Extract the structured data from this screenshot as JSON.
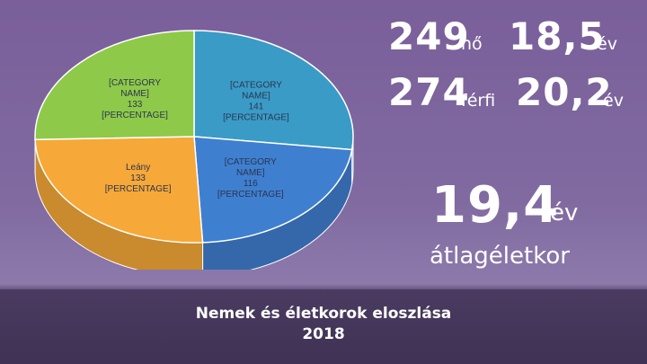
{
  "chart_data": {
    "type": "pie",
    "slices": [
      {
        "label": "[CATEGORY NAME]",
        "value": 141,
        "percent_label": "[PERCENTAGE]",
        "color": "#3a9bc6"
      },
      {
        "label": "[CATEGORY NAME]",
        "value": 116,
        "percent_label": "[PERCENTAGE]",
        "color": "#3f7fd0"
      },
      {
        "label": "Leány",
        "value": 133,
        "percent_label": "[PERCENTAGE]",
        "color": "#f6a838"
      },
      {
        "label": "[CATEGORY NAME]",
        "value": 133,
        "percent_label": "[PERCENTAGE]",
        "color": "#8fc94a"
      }
    ],
    "start_angle_deg": 0
  },
  "stats": {
    "female_count": "249",
    "female_label": "nő",
    "female_age": "18,5",
    "female_age_unit": "év",
    "male_count": "274",
    "male_label": "férfi",
    "male_age": "20,2",
    "male_age_unit": "év",
    "avg_age": "19,4",
    "avg_age_unit": "év",
    "avg_label": "átlagéletkor"
  },
  "footer": {
    "title_line1": "Nemek és életkorok eloszlása",
    "title_line2": "2018"
  }
}
